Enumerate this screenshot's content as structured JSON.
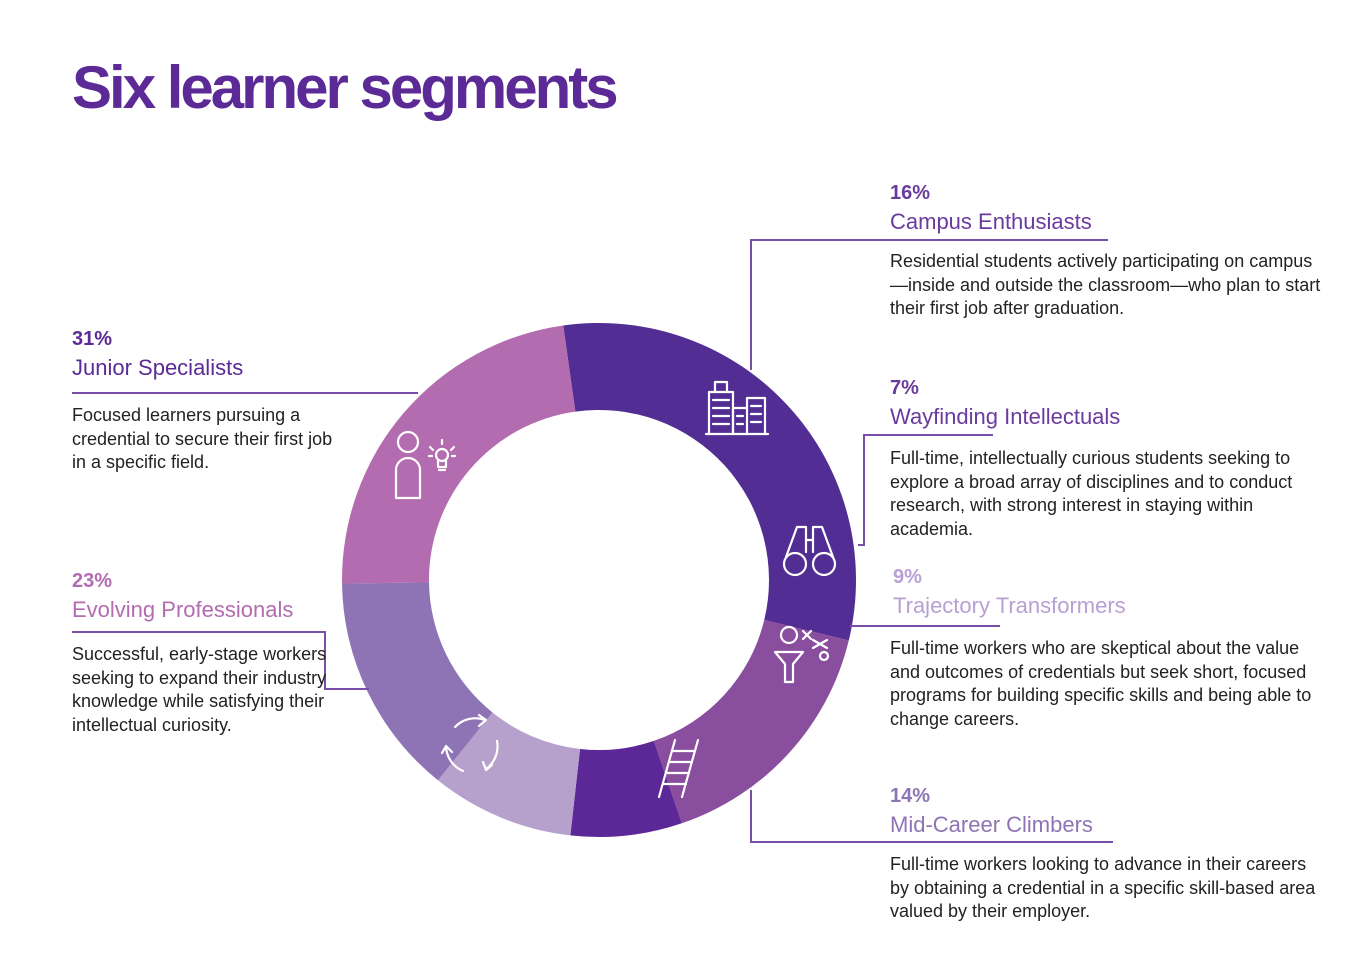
{
  "title": "Six learner segments",
  "chart_data": {
    "type": "pie",
    "variant": "donut",
    "slices": [
      {
        "label": "Junior Specialists",
        "value": 31,
        "pct_label": "31%",
        "description": "Focused learners pursuing a credential to secure their first job in a specific field.",
        "color": "#522d93",
        "icon": "person-lightbulb-icon"
      },
      {
        "label": "Campus Enthusiasts",
        "value": 16,
        "pct_label": "16%",
        "description": "Residential students actively participating on campus—inside and outside the classroom—who plan to start their first job after graduation.",
        "color": "#8a4e9e",
        "icon": "city-buildings-icon"
      },
      {
        "label": "Wayfinding Intellectuals",
        "value": 7,
        "pct_label": "7%",
        "description": "Full-time, intellectually curious students seeking to explore a broad array of disciplines and to conduct research, with strong interest in staying within academia.",
        "color": "#5c2796",
        "icon": "binoculars-icon"
      },
      {
        "label": "Trajectory Transformers",
        "value": 9,
        "pct_label": "9%",
        "description": "Full-time workers who are skeptical about the value and outcomes of credentials but seek short, focused programs for building specific skills and being able to change careers.",
        "color": "#b6a0cc",
        "icon": "person-strategy-icon"
      },
      {
        "label": "Mid-Career Climbers",
        "value": 14,
        "pct_label": "14%",
        "description": "Full-time workers looking to advance in their careers by obtaining a credential in a specific skill-based area valued by their employer.",
        "color": "#8e74b5",
        "icon": "ladder-icon"
      },
      {
        "label": "Evolving Professionals",
        "value": 23,
        "pct_label": "23%",
        "description": "Successful, early-stage workers seeking to expand their industry knowledge while satisfying their intellectual curiosity.",
        "color": "#b36caf",
        "icon": "cycle-arrows-icon"
      }
    ],
    "label_colors": {
      "Junior Specialists": "#5b2a96",
      "Campus Enthusiasts": "#6b3a9e",
      "Wayfinding Intellectuals": "#6b3a9e",
      "Trajectory Transformers": "#b9a0d4",
      "Mid-Career Climbers": "#8e74b5",
      "Evolving Professionals": "#b36caf"
    },
    "leader_color": "#7a4ea8"
  }
}
